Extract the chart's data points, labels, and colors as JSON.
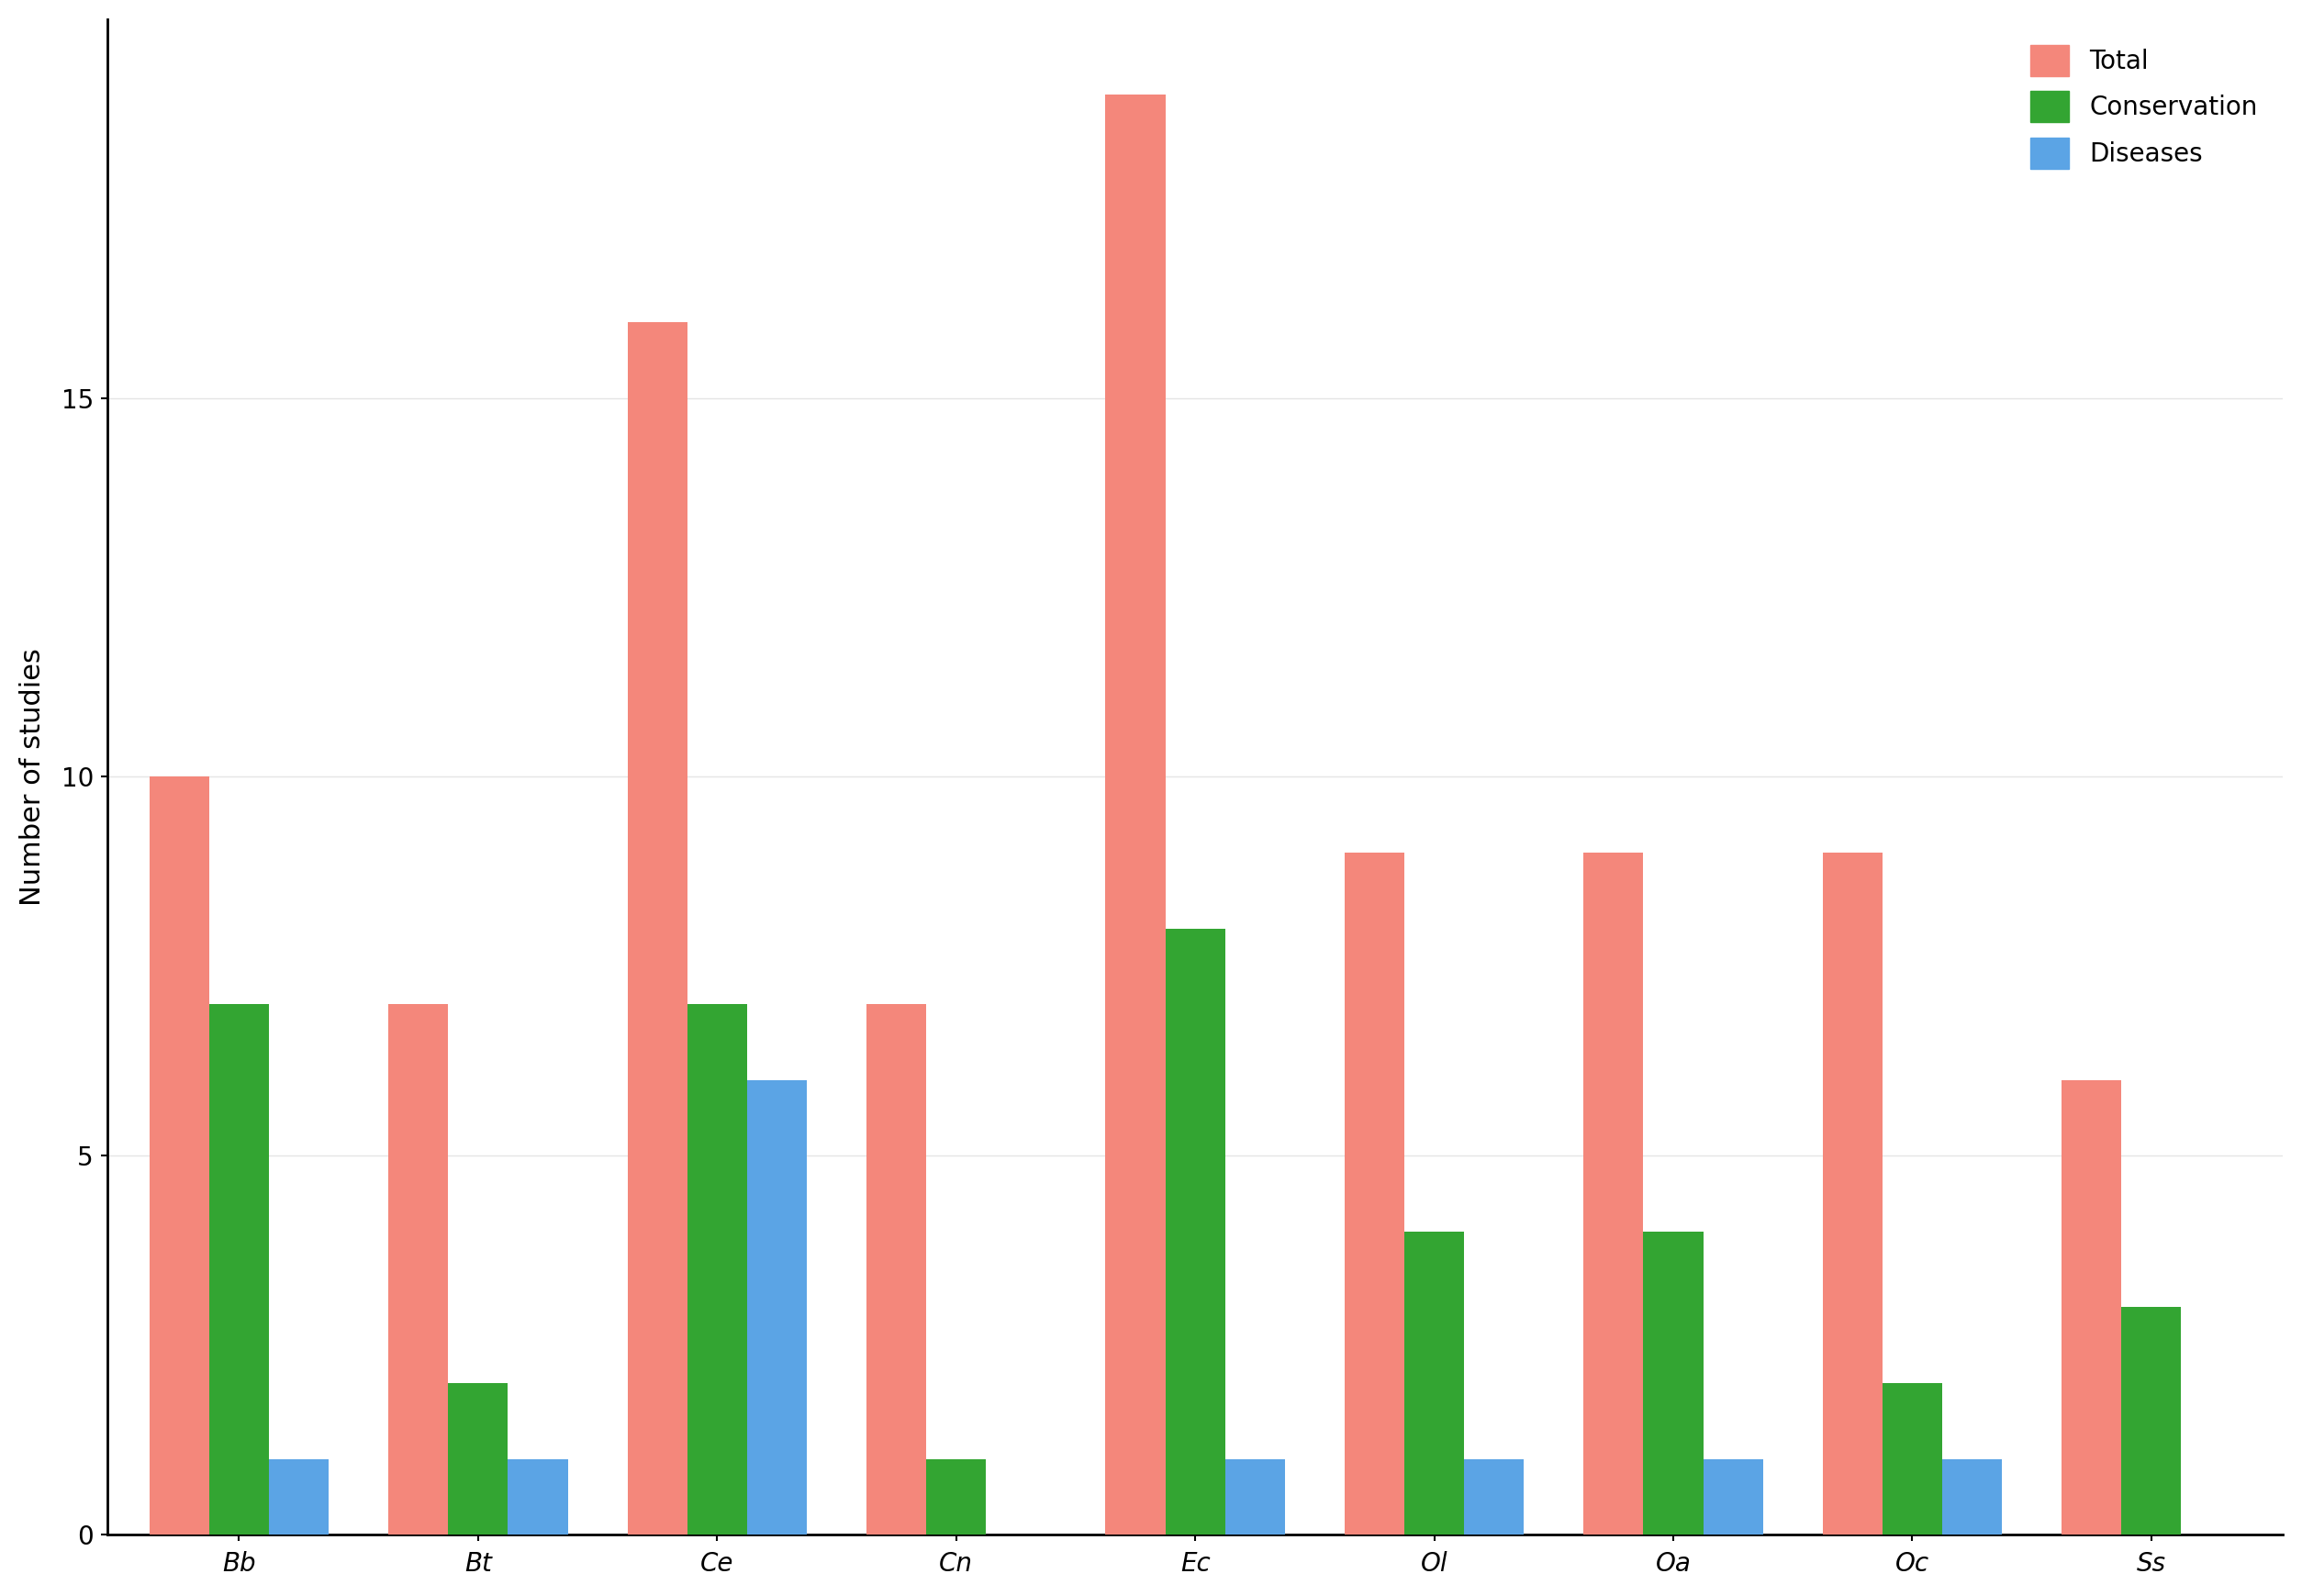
{
  "categories": [
    "Bb",
    "Bt",
    "Ce",
    "Cn",
    "Ec",
    "Ol",
    "Oa",
    "Oc",
    "Ss"
  ],
  "total": [
    10,
    7,
    16,
    7,
    19,
    9,
    9,
    9,
    6
  ],
  "conservation": [
    7,
    2,
    7,
    1,
    8,
    4,
    4,
    2,
    3
  ],
  "diseases": [
    1,
    1,
    6,
    0,
    1,
    1,
    1,
    1,
    0
  ],
  "color_total": "#F4877B",
  "color_conservation": "#33A532",
  "color_diseases": "#5BA4E5",
  "ylabel": "Number of studies",
  "ylim": [
    0,
    20
  ],
  "yticks": [
    0,
    5,
    10,
    15
  ],
  "legend_labels": [
    "Total",
    "Conservation",
    "Diseases"
  ],
  "background_color": "#FFFFFF",
  "bar_width": 0.25,
  "axis_label_fontsize": 22,
  "tick_fontsize": 20,
  "legend_fontsize": 20
}
